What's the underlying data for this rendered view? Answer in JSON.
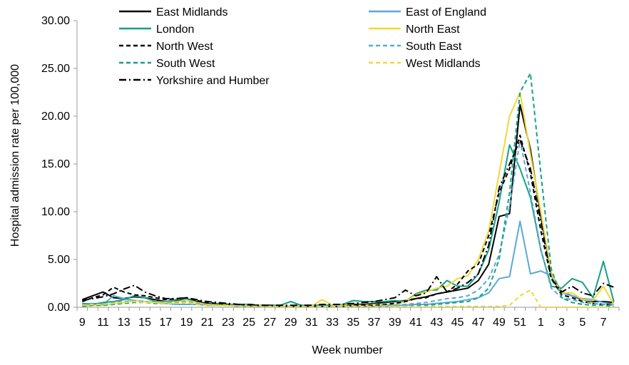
{
  "chart_data": {
    "type": "line",
    "title": "",
    "xlabel": "Week number",
    "ylabel": "Hospital admission rate per 100,000",
    "ylim": [
      0,
      30
    ],
    "yticks": [
      "0.00",
      "5.00",
      "10.00",
      "15.00",
      "20.00",
      "25.00",
      "30.00"
    ],
    "x": [
      9,
      10,
      11,
      12,
      13,
      14,
      15,
      16,
      17,
      18,
      19,
      20,
      21,
      22,
      23,
      24,
      25,
      26,
      27,
      28,
      29,
      30,
      31,
      32,
      33,
      34,
      35,
      36,
      37,
      38,
      39,
      40,
      41,
      42,
      43,
      44,
      45,
      46,
      47,
      48,
      49,
      50,
      51,
      52,
      1,
      2,
      3,
      4,
      5,
      6,
      7,
      8
    ],
    "xtick_labels": [
      "9",
      "11",
      "13",
      "15",
      "17",
      "19",
      "21",
      "23",
      "25",
      "27",
      "29",
      "31",
      "33",
      "35",
      "37",
      "39",
      "41",
      "43",
      "45",
      "47",
      "49",
      "51",
      "1",
      "3",
      "5",
      "7"
    ],
    "grid": false,
    "legend_position": "top",
    "series": [
      {
        "name": "East Midlands",
        "color": "#000000",
        "dash": "solid",
        "values": [
          0.8,
          1.2,
          1.6,
          1.0,
          0.9,
          1.1,
          1.0,
          0.8,
          0.6,
          0.7,
          0.9,
          0.6,
          0.4,
          0.3,
          0.3,
          0.2,
          0.2,
          0.2,
          0.1,
          0.1,
          0.1,
          0.1,
          0.1,
          0.2,
          0.2,
          0.2,
          0.3,
          0.3,
          0.4,
          0.5,
          0.6,
          0.7,
          0.9,
          1.1,
          1.4,
          1.6,
          1.8,
          2.0,
          2.8,
          4.5,
          9.5,
          9.8,
          21.2,
          16.5,
          9.5,
          3.5,
          1.6,
          1.2,
          0.8,
          0.6,
          0.6,
          0.5
        ]
      },
      {
        "name": "East of England",
        "color": "#5aa9d6",
        "dash": "solid",
        "values": [
          0.3,
          0.4,
          0.3,
          1.2,
          0.9,
          0.7,
          0.6,
          0.5,
          0.4,
          0.3,
          0.3,
          0.3,
          0.2,
          0.2,
          0.2,
          0.1,
          0.1,
          0.1,
          0.1,
          0.1,
          0.1,
          0.1,
          0.1,
          0.1,
          0.1,
          0.1,
          0.1,
          0.1,
          0.1,
          0.1,
          0.2,
          0.2,
          0.3,
          0.3,
          0.4,
          0.5,
          0.6,
          0.8,
          1.0,
          1.5,
          3.0,
          3.2,
          9.0,
          3.5,
          3.8,
          3.3,
          1.5,
          1.2,
          0.9,
          0.8,
          0.5,
          0.3
        ]
      },
      {
        "name": "London",
        "color": "#16a085",
        "dash": "solid",
        "values": [
          0.4,
          0.3,
          0.5,
          0.6,
          0.8,
          1.2,
          1.0,
          0.6,
          0.6,
          0.8,
          0.9,
          0.5,
          0.3,
          0.4,
          0.3,
          0.3,
          0.3,
          0.2,
          0.2,
          0.2,
          0.6,
          0.2,
          0.2,
          0.2,
          0.2,
          0.3,
          0.7,
          0.6,
          0.6,
          0.6,
          0.7,
          0.6,
          1.4,
          1.8,
          1.8,
          2.8,
          2.2,
          2.2,
          3.5,
          6.0,
          11.0,
          17.0,
          14.5,
          11.5,
          6.0,
          2.2,
          2.0,
          3.0,
          2.6,
          1.0,
          4.8,
          0.6
        ]
      },
      {
        "name": "North East",
        "color": "#f0d838",
        "dash": "solid",
        "values": [
          0.1,
          0.2,
          0.2,
          0.4,
          0.5,
          0.7,
          0.6,
          0.5,
          0.5,
          0.6,
          0.7,
          0.5,
          0.3,
          0.2,
          0.2,
          0.2,
          0.2,
          0.2,
          0.1,
          0.1,
          0.1,
          0.1,
          0.1,
          0.8,
          0.2,
          0.2,
          0.2,
          0.2,
          0.3,
          0.3,
          0.3,
          0.6,
          1.3,
          1.6,
          2.0,
          2.2,
          3.0,
          3.3,
          5.0,
          8.0,
          14.0,
          20.0,
          22.5,
          16.0,
          10.0,
          3.5,
          1.5,
          1.5,
          0.8,
          0.7,
          2.2,
          0.3
        ]
      },
      {
        "name": "North West",
        "color": "#000000",
        "dash": "6,4",
        "values": [
          0.6,
          1.0,
          1.3,
          2.1,
          1.6,
          1.3,
          1.2,
          1.0,
          0.8,
          0.9,
          1.0,
          0.7,
          0.5,
          0.4,
          0.3,
          0.3,
          0.2,
          0.2,
          0.2,
          0.1,
          0.1,
          0.1,
          0.1,
          0.1,
          0.1,
          0.1,
          0.2,
          0.2,
          0.2,
          0.3,
          0.4,
          0.6,
          0.9,
          1.0,
          1.4,
          1.6,
          2.4,
          3.8,
          4.5,
          7.5,
          12.0,
          14.5,
          18.0,
          14.0,
          8.0,
          3.0,
          1.3,
          1.0,
          0.6,
          0.4,
          0.3,
          0.3
        ]
      },
      {
        "name": "South East",
        "color": "#5aa9d6",
        "dash": "6,4",
        "values": [
          0.2,
          0.3,
          0.3,
          0.5,
          0.6,
          0.7,
          0.6,
          0.5,
          0.5,
          0.5,
          0.6,
          0.4,
          0.3,
          0.2,
          0.2,
          0.2,
          0.1,
          0.1,
          0.1,
          0.1,
          0.1,
          0.1,
          0.1,
          0.1,
          0.1,
          0.1,
          0.1,
          0.1,
          0.1,
          0.2,
          0.2,
          0.3,
          0.4,
          0.5,
          0.7,
          0.9,
          1.0,
          1.2,
          1.8,
          3.0,
          5.5,
          10.5,
          17.5,
          12.0,
          6.0,
          2.0,
          1.0,
          0.8,
          0.5,
          0.4,
          0.3,
          0.2
        ]
      },
      {
        "name": "South West",
        "color": "#16a085",
        "dash": "6,4",
        "values": [
          0.1,
          0.2,
          0.2,
          0.3,
          0.4,
          0.5,
          0.5,
          0.4,
          0.4,
          0.4,
          0.5,
          0.3,
          0.2,
          0.2,
          0.2,
          0.1,
          0.1,
          0.1,
          0.1,
          0.1,
          0.1,
          0.1,
          0.1,
          0.1,
          0.1,
          0.1,
          0.1,
          0.1,
          0.1,
          0.1,
          0.1,
          0.1,
          0.2,
          0.2,
          0.3,
          0.4,
          0.5,
          0.6,
          1.0,
          2.0,
          5.0,
          12.0,
          22.5,
          24.5,
          14.0,
          4.0,
          1.0,
          0.5,
          0.3,
          0.2,
          0.2,
          0.1
        ]
      },
      {
        "name": "West Midlands",
        "color": "#f0d838",
        "dash": "6,4",
        "values": [
          0.2,
          0.3,
          0.3,
          0.4,
          0.5,
          0.6,
          0.5,
          0.5,
          0.4,
          0.4,
          0.5,
          0.3,
          0.2,
          0.2,
          0.2,
          0.1,
          0.1,
          0.1,
          0.1,
          0.1,
          0.1,
          0.1,
          0.1,
          0.1,
          0.1,
          0.1,
          0.1,
          0.1,
          0.1,
          0.1,
          0.1,
          0.1,
          0.1,
          0.1,
          0.1,
          0.1,
          0.1,
          0.1,
          0.1,
          0.1,
          0.1,
          0.2,
          1.2,
          1.8,
          0.0,
          0.0,
          0.0,
          0.0,
          0.0,
          0.0,
          0.0,
          0.0
        ]
      },
      {
        "name": "Yorkshire and Humber",
        "color": "#000000",
        "dash": "10,4,2,4",
        "values": [
          0.7,
          0.9,
          1.1,
          1.4,
          1.9,
          2.3,
          1.6,
          1.2,
          0.9,
          0.9,
          1.0,
          0.8,
          0.6,
          0.5,
          0.4,
          0.3,
          0.3,
          0.2,
          0.2,
          0.2,
          0.2,
          0.2,
          0.2,
          0.3,
          0.3,
          0.3,
          0.4,
          0.5,
          0.6,
          0.8,
          1.0,
          1.8,
          1.2,
          1.5,
          3.2,
          1.6,
          2.0,
          2.6,
          3.5,
          6.5,
          12.5,
          15.0,
          17.5,
          14.5,
          9.0,
          3.0,
          1.6,
          2.2,
          1.5,
          1.2,
          2.5,
          2.1
        ]
      }
    ]
  }
}
